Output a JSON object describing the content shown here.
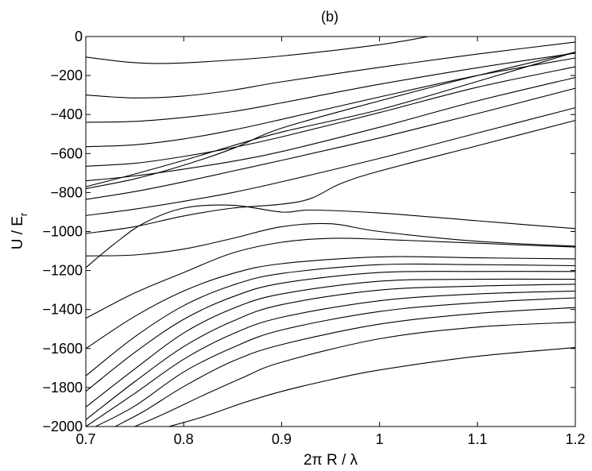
{
  "chart_data": {
    "type": "line",
    "title": "(b)",
    "xlabel": "2π R / λ",
    "ylabel": "U / E",
    "ylabel_subscript": "r",
    "xlim": [
      0.7,
      1.2
    ],
    "ylim": [
      -2000,
      0
    ],
    "xticks": [
      0.7,
      0.8,
      0.9,
      1.0,
      1.1,
      1.2
    ],
    "xtick_labels": [
      "0.7",
      "0.8",
      "0.9",
      "1",
      "1.1",
      "1.2"
    ],
    "yticks": [
      0,
      -200,
      -400,
      -600,
      -800,
      -1000,
      -1200,
      -1400,
      -1600,
      -1800,
      -2000
    ],
    "ytick_labels": [
      "0",
      "−200",
      "−400",
      "−600",
      "−800",
      "−1000",
      "−1200",
      "−1400",
      "−1600",
      "−1800",
      "−2000"
    ],
    "grid": false,
    "legend": "none",
    "series": [
      {
        "x": [
          0.7,
          0.74,
          0.775,
          0.82,
          0.9,
          1.0,
          1.05
        ],
        "y": [
          -105,
          -130,
          -138,
          -130,
          -100,
          -42,
          0
        ]
      },
      {
        "x": [
          0.7,
          0.75,
          0.8,
          0.85,
          0.9,
          1.0,
          1.1,
          1.2
        ],
        "y": [
          -300,
          -315,
          -305,
          -275,
          -232,
          -158,
          -90,
          -28
        ]
      },
      {
        "x": [
          0.7,
          0.75,
          0.8,
          0.85,
          0.9,
          1.0,
          1.1,
          1.2
        ],
        "y": [
          -440,
          -435,
          -415,
          -385,
          -340,
          -245,
          -160,
          -85
        ]
      },
      {
        "x": [
          0.7,
          0.75,
          0.8,
          0.85,
          0.9,
          1.0,
          1.1,
          1.2
        ],
        "y": [
          -565,
          -555,
          -525,
          -480,
          -425,
          -310,
          -200,
          -110
        ]
      },
      {
        "x": [
          0.7,
          0.75,
          0.8,
          0.85,
          0.9,
          1.0,
          1.1,
          1.2
        ],
        "y": [
          -665,
          -650,
          -615,
          -570,
          -515,
          -390,
          -260,
          -155
        ]
      },
      {
        "x": [
          0.7,
          0.75,
          0.8,
          0.85,
          0.9,
          1.0,
          1.1,
          1.2
        ],
        "y": [
          -740,
          -715,
          -680,
          -640,
          -590,
          -465,
          -330,
          -210
        ]
      },
      {
        "x": [
          0.7,
          0.75,
          0.8,
          0.85,
          0.9,
          1.0,
          1.1,
          1.2
        ],
        "y": [
          -770,
          -705,
          -635,
          -560,
          -490,
          -375,
          -230,
          -80
        ]
      },
      {
        "x": [
          0.7,
          0.75,
          0.8,
          0.85,
          0.9,
          1.0,
          1.1,
          1.2
        ],
        "y": [
          -780,
          -730,
          -660,
          -575,
          -470,
          -330,
          -200,
          -80
        ]
      },
      {
        "x": [
          0.7,
          0.75,
          0.8,
          0.85,
          0.9,
          1.0,
          1.1,
          1.2
        ],
        "y": [
          -835,
          -795,
          -745,
          -690,
          -635,
          -520,
          -395,
          -265
        ]
      },
      {
        "x": [
          0.7,
          0.75,
          0.8,
          0.85,
          0.9,
          1.0,
          1.1,
          1.2
        ],
        "y": [
          -918,
          -885,
          -845,
          -800,
          -745,
          -625,
          -495,
          -365
        ]
      },
      {
        "x": [
          0.7,
          0.75,
          0.8,
          0.85,
          0.9,
          0.93,
          0.96,
          1.0,
          1.1,
          1.2
        ],
        "y": [
          -1010,
          -975,
          -920,
          -880,
          -860,
          -830,
          -755,
          -690,
          -560,
          -430
        ]
      },
      {
        "x": [
          0.7,
          0.73,
          0.76,
          0.8,
          0.85,
          0.9,
          0.93,
          1.0,
          1.1,
          1.2
        ],
        "y": [
          -1185,
          -1060,
          -955,
          -880,
          -865,
          -900,
          -890,
          -905,
          -945,
          -985
        ]
      },
      {
        "x": [
          0.7,
          0.75,
          0.8,
          0.85,
          0.9,
          0.95,
          1.0,
          1.1,
          1.2
        ],
        "y": [
          -1125,
          -1120,
          -1090,
          -1035,
          -975,
          -960,
          -1000,
          -1050,
          -1075
        ]
      },
      {
        "x": [
          0.7,
          0.75,
          0.8,
          0.85,
          0.9,
          0.95,
          1.0,
          1.1,
          1.2
        ],
        "y": [
          -1445,
          -1315,
          -1210,
          -1110,
          -1055,
          -1035,
          -1040,
          -1060,
          -1080
        ]
      },
      {
        "x": [
          0.7,
          0.75,
          0.8,
          0.85,
          0.9,
          1.0,
          1.1,
          1.2
        ],
        "y": [
          -1600,
          -1435,
          -1305,
          -1215,
          -1165,
          -1130,
          -1135,
          -1140
        ]
      },
      {
        "x": [
          0.7,
          0.75,
          0.8,
          0.85,
          0.9,
          1.0,
          1.1,
          1.2
        ],
        "y": [
          -1740,
          -1540,
          -1380,
          -1275,
          -1215,
          -1170,
          -1170,
          -1175
        ]
      },
      {
        "x": [
          0.7,
          0.75,
          0.8,
          0.85,
          0.9,
          1.0,
          1.1,
          1.2
        ],
        "y": [
          -1820,
          -1620,
          -1450,
          -1335,
          -1265,
          -1210,
          -1205,
          -1205
        ]
      },
      {
        "x": [
          0.7,
          0.75,
          0.8,
          0.85,
          0.9,
          1.0,
          1.1,
          1.2
        ],
        "y": [
          -1900,
          -1705,
          -1520,
          -1395,
          -1320,
          -1255,
          -1245,
          -1245
        ]
      },
      {
        "x": [
          0.7,
          0.75,
          0.8,
          0.85,
          0.9,
          1.0,
          1.1,
          1.2
        ],
        "y": [
          -1965,
          -1770,
          -1590,
          -1460,
          -1375,
          -1300,
          -1280,
          -1270
        ]
      },
      {
        "x": [
          0.7,
          0.75,
          0.8,
          0.85,
          0.9,
          1.0,
          1.1,
          1.2
        ],
        "y": [
          -2000,
          -1830,
          -1655,
          -1525,
          -1440,
          -1355,
          -1320,
          -1305
        ]
      },
      {
        "x": [
          0.71,
          0.75,
          0.8,
          0.85,
          0.9,
          1.0,
          1.1,
          1.2
        ],
        "y": [
          -2000,
          -1895,
          -1720,
          -1595,
          -1505,
          -1410,
          -1365,
          -1340
        ]
      },
      {
        "x": [
          0.73,
          0.76,
          0.8,
          0.85,
          0.9,
          1.0,
          1.1,
          1.2
        ],
        "y": [
          -2000,
          -1920,
          -1795,
          -1665,
          -1580,
          -1475,
          -1420,
          -1390
        ]
      },
      {
        "x": [
          0.75,
          0.78,
          0.82,
          0.86,
          0.9,
          1.0,
          1.1,
          1.2
        ],
        "y": [
          -2000,
          -1935,
          -1840,
          -1750,
          -1670,
          -1550,
          -1490,
          -1465
        ]
      },
      {
        "x": [
          0.785,
          0.82,
          0.86,
          0.9,
          0.95,
          1.0,
          1.1,
          1.2
        ],
        "y": [
          -2000,
          -1950,
          -1880,
          -1820,
          -1760,
          -1710,
          -1640,
          -1595
        ]
      }
    ]
  }
}
